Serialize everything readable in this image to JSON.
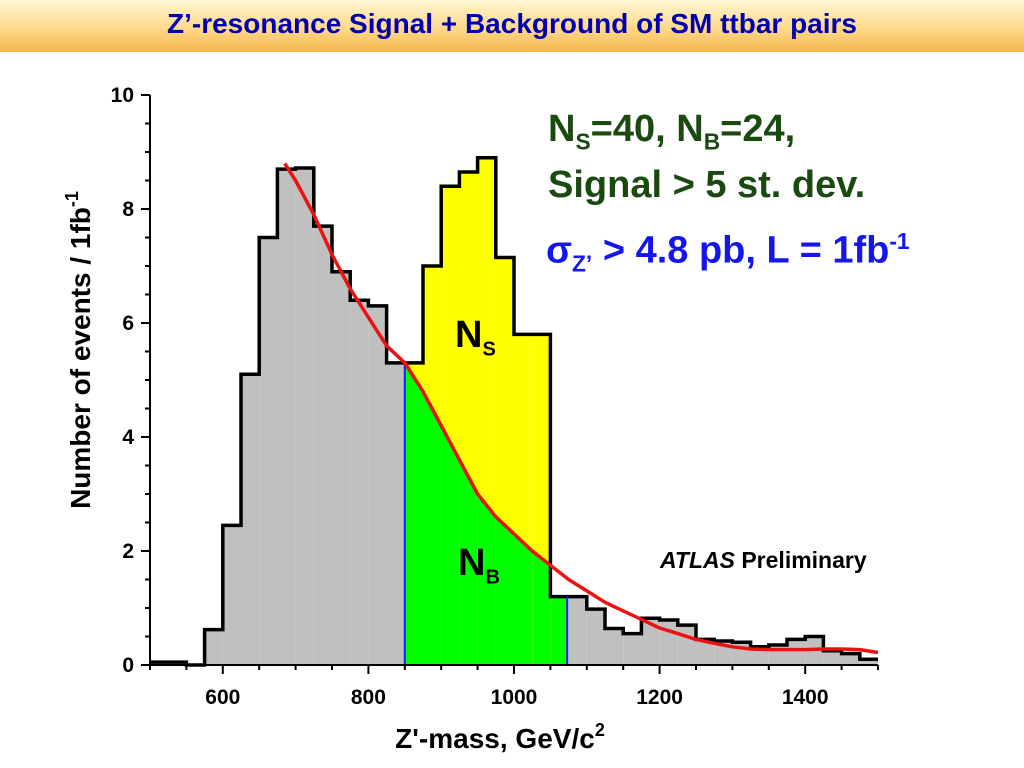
{
  "title": "Z’-resonance Signal + Background of SM ttbar pairs",
  "annotations": {
    "ns_nb": {
      "n1": "N",
      "s1": "S",
      "eq1": "=40, ",
      "n2": "N",
      "s2": "B",
      "eq2": "=24,"
    },
    "significance": "Signal > 5 st. dev.",
    "sigma": {
      "symbol": "σ",
      "sub": "Z’",
      "text": " > 4.8 pb, L = 1fb",
      "sup": "-1"
    },
    "ns_label": {
      "main": "N",
      "sub": "S"
    },
    "nb_label": {
      "main": "N",
      "sub": "B"
    },
    "atlas": {
      "italic": "ATLAS",
      "rest": " Preliminary"
    }
  },
  "colors": {
    "background_fill": "#c0c0c0",
    "signal_fill": "#ffff00",
    "background_in_window_fill": "#00ff00",
    "fit_curve": "#ee1111",
    "window_lines": "#1a1aff",
    "histogram_outline": "#000000",
    "title_text": "#0000b0",
    "annotation_green": "#1a4a10",
    "annotation_blue": "#1515ee"
  },
  "chart_data": {
    "type": "histogram",
    "xlabel": "Z'-mass, GeV/c",
    "xlabel_sup": "2",
    "ylabel": "Number of events / 1fb",
    "ylabel_sup": "-1",
    "xlim": [
      500,
      1500
    ],
    "ylim": [
      0,
      10
    ],
    "xticks": [
      600,
      800,
      1000,
      1200,
      1400
    ],
    "yticks": [
      0,
      2,
      4,
      6,
      8,
      10
    ],
    "bin_edges": [
      500,
      525,
      550,
      575,
      600,
      625,
      650,
      675,
      700,
      725,
      750,
      775,
      800,
      825,
      850,
      875,
      900,
      925,
      950,
      975,
      1000,
      1025,
      1050,
      1075,
      1100,
      1125,
      1150,
      1175,
      1200,
      1225,
      1250,
      1275,
      1300,
      1325,
      1350,
      1375,
      1400,
      1425,
      1450,
      1475,
      1500
    ],
    "total_counts": [
      0.05,
      0.05,
      0,
      0.62,
      2.45,
      5.1,
      7.5,
      8.7,
      8.72,
      7.7,
      6.9,
      6.4,
      6.3,
      5.3,
      5.3,
      7.0,
      8.4,
      8.65,
      8.9,
      7.15,
      5.8,
      5.8,
      1.2,
      1.2,
      0.98,
      0.64,
      0.55,
      0.82,
      0.79,
      0.7,
      0.45,
      0.42,
      0.4,
      0.32,
      0.35,
      0.45,
      0.5,
      0.25,
      0.2,
      0.1
    ],
    "signal_window": [
      850,
      1073
    ],
    "background_fit": {
      "x": [
        685,
        700,
        725,
        750,
        775,
        800,
        825,
        850,
        875,
        900,
        925,
        950,
        975,
        1000,
        1025,
        1050,
        1075,
        1100,
        1125,
        1150,
        1175,
        1200,
        1225,
        1250,
        1275,
        1300,
        1325,
        1350,
        1375,
        1400,
        1425,
        1450,
        1475,
        1500
      ],
      "y": [
        8.8,
        8.5,
        7.9,
        7.2,
        6.6,
        6.1,
        5.6,
        5.3,
        4.8,
        4.2,
        3.6,
        3.0,
        2.6,
        2.3,
        2.0,
        1.75,
        1.5,
        1.3,
        1.1,
        0.95,
        0.8,
        0.65,
        0.55,
        0.45,
        0.38,
        0.32,
        0.28,
        0.27,
        0.27,
        0.27,
        0.28,
        0.28,
        0.27,
        0.22
      ]
    }
  }
}
